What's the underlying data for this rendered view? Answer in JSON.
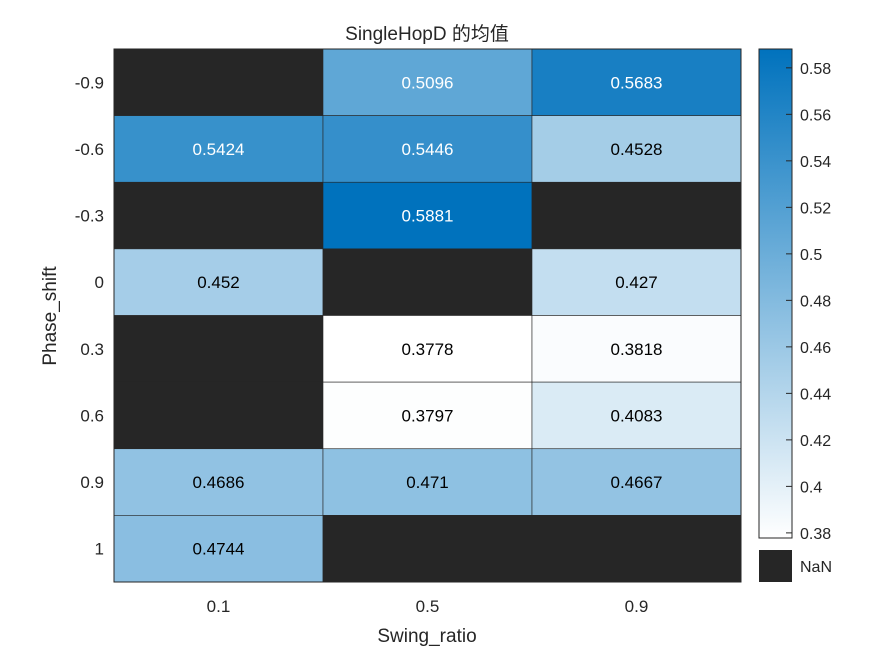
{
  "chart_data": {
    "type": "heatmap",
    "title": "SingleHopD 的均值",
    "xlabel": "Swing_ratio",
    "ylabel": "Phase_shift",
    "x_categories": [
      "0.1",
      "0.5",
      "0.9"
    ],
    "y_categories": [
      "-0.9",
      "-0.6",
      "-0.3",
      "0",
      "0.3",
      "0.6",
      "0.9",
      "1"
    ],
    "values": [
      [
        null,
        0.5096,
        0.5683
      ],
      [
        0.5424,
        0.5446,
        0.4528
      ],
      [
        null,
        0.5881,
        null
      ],
      [
        0.452,
        null,
        0.427
      ],
      [
        null,
        0.3778,
        0.3818
      ],
      [
        null,
        0.3797,
        0.4083
      ],
      [
        0.4686,
        0.471,
        0.4667
      ],
      [
        0.4744,
        null,
        null
      ]
    ],
    "value_labels": [
      [
        "",
        "0.5096",
        "0.5683"
      ],
      [
        "0.5424",
        "0.5446",
        "0.4528"
      ],
      [
        "",
        "0.5881",
        ""
      ],
      [
        "0.452",
        "",
        "0.427"
      ],
      [
        "",
        "0.3778",
        "0.3818"
      ],
      [
        "",
        "0.3797",
        "0.4083"
      ],
      [
        "0.4686",
        "0.471",
        "0.4667"
      ],
      [
        "0.4744",
        "",
        ""
      ]
    ],
    "colorbar": {
      "range": [
        0.3778,
        0.5881
      ],
      "ticks": [
        0.38,
        0.4,
        0.42,
        0.44,
        0.46,
        0.48,
        0.5,
        0.52,
        0.54,
        0.56,
        0.58
      ],
      "tick_labels": [
        "0.38",
        "0.4",
        "0.42",
        "0.44",
        "0.46",
        "0.48",
        "0.5",
        "0.52",
        "0.54",
        "0.56",
        "0.58"
      ],
      "colormap_low": "#ffffff",
      "colormap_high": "#0072bd"
    },
    "nan_label": "NaN",
    "nan_color": "#262626"
  }
}
